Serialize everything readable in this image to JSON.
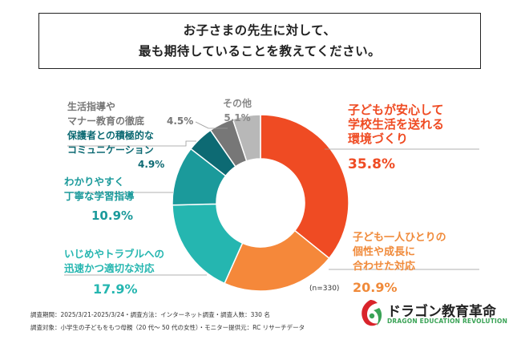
{
  "title": {
    "line1": "お子さまの先生に対して、",
    "line2": "最も期待していることを教えてください。"
  },
  "chart_data": {
    "type": "pie",
    "donut": true,
    "slices": [
      {
        "label": "子どもが安心して\n学校生活を送れる\n環境づくり",
        "value": 35.8,
        "display": "35.8%",
        "color": "#ef4b23"
      },
      {
        "label": "子ども一人ひとりの\n個性や成長に\n合わせた対応",
        "value": 20.9,
        "display": "20.9%",
        "color": "#f5883a"
      },
      {
        "label": "いじめやトラブルへの\n迅速かつ適切な対応",
        "value": 17.9,
        "display": "17.9%",
        "color": "#25b6b0"
      },
      {
        "label": "わかりやすく\n丁寧な学習指導",
        "value": 10.9,
        "display": "10.9%",
        "color": "#1b9a9b"
      },
      {
        "label": "保護者との積極的な\nコミュニケーション",
        "value": 4.9,
        "display": "4.9%",
        "color": "#0d6a73"
      },
      {
        "label": "生活指導や\nマナー教育の徹底",
        "value": 4.5,
        "display": "4.5%",
        "color": "#777777"
      },
      {
        "label": "その他",
        "value": 5.1,
        "display": "5.1%",
        "color": "#b8b8b8"
      }
    ],
    "note": "(n=330)"
  },
  "footer": {
    "line1": "調査期間：2025/3/21-2025/3/24・調査方法：インターネット調査・調査人数：330 名",
    "line2": "調査対象：小学生の子どもをもつ母親（20 代〜 50 代の女性）・モニター提供元：RC リサーチデータ"
  },
  "logo": {
    "name": "ドラゴン教育革命",
    "sub": "DRAGON EDUCATION REVOLUTION",
    "colors": {
      "red": "#d9242b",
      "green": "#3aa356"
    }
  }
}
